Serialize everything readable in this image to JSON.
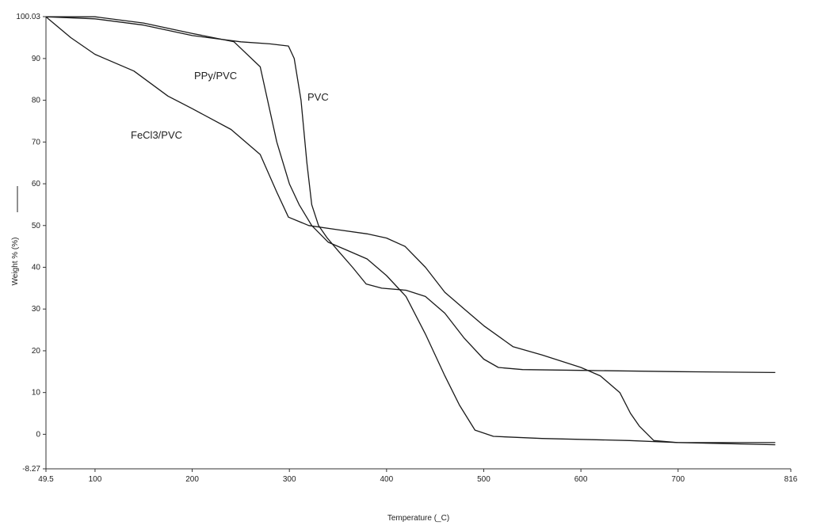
{
  "chart_data": {
    "type": "line",
    "x_label": "Temperature (_C)",
    "y_label": "Weight % (%)",
    "xlim": [
      49.5,
      816
    ],
    "ylim": [
      -8.27,
      100.03
    ],
    "xticks": [
      49.5,
      100,
      200,
      300,
      400,
      500,
      600,
      700,
      816
    ],
    "yticks": [
      -8.27,
      0,
      10,
      20,
      30,
      40,
      50,
      60,
      70,
      80,
      90,
      100.03
    ],
    "grid": false,
    "series": [
      {
        "name": "PPy/PVC",
        "color": "#1a1a1a",
        "x": [
          49.5,
          100,
          150,
          200,
          243,
          270,
          287,
          300,
          310,
          323,
          340,
          360,
          380,
          400,
          420,
          440,
          460,
          475,
          491,
          510,
          560,
          650,
          700,
          800
        ],
        "values": [
          100,
          100,
          98.5,
          96,
          94,
          88,
          70,
          60,
          55,
          50,
          46,
          44,
          42,
          38,
          33,
          24,
          14,
          7,
          1,
          -0.5,
          -1,
          -1.5,
          -2,
          -2.5
        ]
      },
      {
        "name": "PVC",
        "color": "#1a1a1a",
        "x": [
          49.5,
          100,
          150,
          200,
          250,
          280,
          299,
          305,
          312,
          318,
          323,
          330,
          339,
          350,
          365,
          379,
          395,
          420,
          440,
          460,
          480,
          500,
          515,
          540,
          600,
          700,
          800
        ],
        "values": [
          100,
          99.5,
          98,
          95.5,
          94,
          93.5,
          93,
          90,
          80,
          65,
          55,
          50,
          47,
          44,
          40,
          36,
          35,
          34.5,
          33,
          29,
          23,
          18,
          16,
          15.5,
          15.3,
          15,
          14.8
        ]
      },
      {
        "name": "FeCl3/PVC",
        "color": "#1a1a1a",
        "x": [
          49.5,
          75,
          100,
          140,
          175,
          200,
          240,
          270,
          287,
          299,
          320,
          350,
          380,
          400,
          419,
          440,
          460,
          480,
          500,
          530,
          560,
          600,
          620,
          640,
          651,
          660,
          675,
          700,
          800
        ],
        "values": [
          100,
          95,
          91,
          87,
          81,
          78,
          73,
          67,
          58,
          52,
          50,
          49,
          48,
          47,
          45,
          40,
          34,
          30,
          26,
          21,
          19,
          16,
          14,
          10,
          5,
          2,
          -1.5,
          -2,
          -2
        ]
      }
    ]
  }
}
